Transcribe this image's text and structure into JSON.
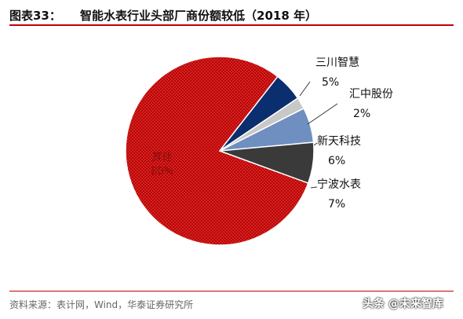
{
  "header": {
    "figure_label": "图表33：",
    "title": "智能水表行业头部厂商份额较低（2018 年）"
  },
  "chart_data": {
    "type": "pie",
    "title": "智能水表行业头部厂商份额较低（2018 年）",
    "slices": [
      {
        "name": "其他",
        "value": 80,
        "label": "80%",
        "color": "#c00000"
      },
      {
        "name": "三川智慧",
        "value": 5,
        "label": "5%",
        "color": "#0b2e6e"
      },
      {
        "name": "汇中股份",
        "value": 2,
        "label": "2%",
        "color": "#c8c8c8"
      },
      {
        "name": "新天科技",
        "value": 6,
        "label": "6%",
        "color": "#6f8fc0"
      },
      {
        "name": "宁波水表",
        "value": 7,
        "label": "7%",
        "color": "#3a3a3a"
      }
    ]
  },
  "source": "资料来源：表计网，Wind，华泰证券研究所",
  "watermark": "头条 @未来智库"
}
